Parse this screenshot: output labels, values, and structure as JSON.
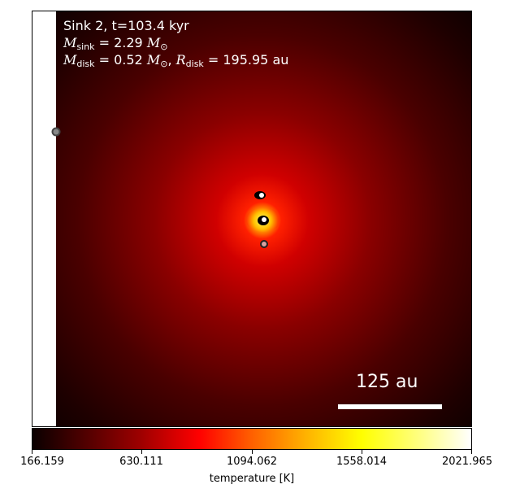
{
  "annotation": {
    "line1": "Sink 2, t=103.4 kyr",
    "m_sink_symbol": "M",
    "m_sink_sub": "sink",
    "m_sink_value": " = 2.29 ",
    "m_sink_unit": "M",
    "sun_sub": "⊙",
    "m_disk_symbol": "M",
    "m_disk_sub": "disk",
    "m_disk_value": " = 0.52 ",
    "m_disk_unit": "M",
    "r_disk_symbol": "R",
    "r_disk_sub": "disk",
    "r_disk_value": " = 195.95 au",
    "separator": ", "
  },
  "scale_bar": {
    "label": "125 au",
    "length_au": 125
  },
  "colorbar": {
    "label": "temperature [K]",
    "min": 166.159,
    "max": 2021.965,
    "ticks": [
      "166.159",
      "630.111",
      "1094.062",
      "1558.014",
      "2021.965"
    ],
    "colormap": "hot"
  },
  "sinks": [
    {
      "id": "sink-edge",
      "fill": "#888888"
    },
    {
      "id": "sink-upper",
      "fill": "#ffffff"
    },
    {
      "id": "sink-center",
      "fill": "#ffffff"
    },
    {
      "id": "sink-lower",
      "fill": "#d9a0a0"
    }
  ]
}
